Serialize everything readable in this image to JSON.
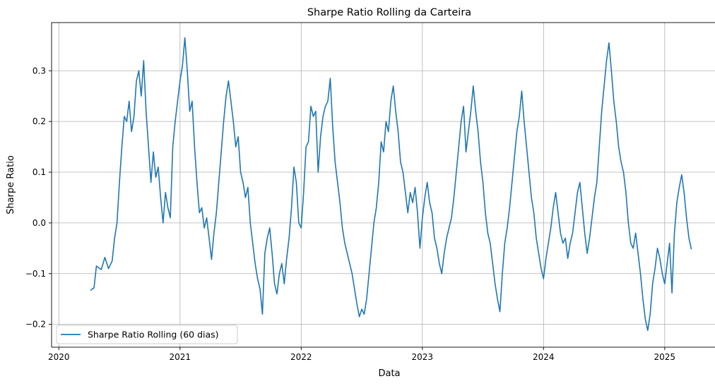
{
  "chart_data": {
    "type": "line",
    "title": "Sharpe Ratio Rolling da Carteira",
    "xlabel": "Data",
    "ylabel": "Sharpe Ratio",
    "xlim": [
      2019.94,
      2025.52
    ],
    "ylim": [
      -0.245,
      0.395
    ],
    "x_ticks": [
      {
        "value": 2020,
        "label": "2020"
      },
      {
        "value": 2021,
        "label": "2021"
      },
      {
        "value": 2022,
        "label": "2022"
      },
      {
        "value": 2023,
        "label": "2023"
      },
      {
        "value": 2024,
        "label": "2024"
      },
      {
        "value": 2025,
        "label": "2025"
      }
    ],
    "y_ticks": [
      {
        "value": -0.2,
        "label": "−0.2"
      },
      {
        "value": -0.1,
        "label": "−0.1"
      },
      {
        "value": 0.0,
        "label": "0.0"
      },
      {
        "value": 0.1,
        "label": "0.1"
      },
      {
        "value": 0.2,
        "label": "0.2"
      },
      {
        "value": 0.3,
        "label": "0.3"
      }
    ],
    "grid": true,
    "legend": {
      "position": "lower-left"
    },
    "series": [
      {
        "name": "Sharpe Ratio Rolling (60 dias)",
        "color": "#1f77b4",
        "points": [
          [
            2020.26,
            -0.133
          ],
          [
            2020.29,
            -0.128
          ],
          [
            2020.31,
            -0.085
          ],
          [
            2020.35,
            -0.092
          ],
          [
            2020.38,
            -0.068
          ],
          [
            2020.41,
            -0.09
          ],
          [
            2020.44,
            -0.075
          ],
          [
            2020.46,
            -0.03
          ],
          [
            2020.48,
            0.0
          ],
          [
            2020.5,
            0.08
          ],
          [
            2020.52,
            0.15
          ],
          [
            2020.54,
            0.21
          ],
          [
            2020.56,
            0.2
          ],
          [
            2020.58,
            0.24
          ],
          [
            2020.6,
            0.18
          ],
          [
            2020.62,
            0.21
          ],
          [
            2020.64,
            0.28
          ],
          [
            2020.66,
            0.3
          ],
          [
            2020.68,
            0.25
          ],
          [
            2020.7,
            0.32
          ],
          [
            2020.72,
            0.22
          ],
          [
            2020.74,
            0.15
          ],
          [
            2020.76,
            0.08
          ],
          [
            2020.78,
            0.14
          ],
          [
            2020.8,
            0.09
          ],
          [
            2020.82,
            0.11
          ],
          [
            2020.84,
            0.05
          ],
          [
            2020.86,
            0.0
          ],
          [
            2020.88,
            0.06
          ],
          [
            2020.9,
            0.03
          ],
          [
            2020.92,
            0.01
          ],
          [
            2020.94,
            0.15
          ],
          [
            2020.96,
            0.2
          ],
          [
            2020.98,
            0.24
          ],
          [
            2021.0,
            0.28
          ],
          [
            2021.02,
            0.31
          ],
          [
            2021.04,
            0.365
          ],
          [
            2021.06,
            0.3
          ],
          [
            2021.08,
            0.22
          ],
          [
            2021.1,
            0.24
          ],
          [
            2021.12,
            0.15
          ],
          [
            2021.14,
            0.08
          ],
          [
            2021.16,
            0.02
          ],
          [
            2021.18,
            0.03
          ],
          [
            2021.2,
            -0.01
          ],
          [
            2021.22,
            0.01
          ],
          [
            2021.24,
            -0.03
          ],
          [
            2021.26,
            -0.072
          ],
          [
            2021.28,
            -0.02
          ],
          [
            2021.3,
            0.02
          ],
          [
            2021.32,
            0.08
          ],
          [
            2021.34,
            0.14
          ],
          [
            2021.36,
            0.2
          ],
          [
            2021.38,
            0.25
          ],
          [
            2021.4,
            0.28
          ],
          [
            2021.42,
            0.24
          ],
          [
            2021.44,
            0.2
          ],
          [
            2021.46,
            0.15
          ],
          [
            2021.48,
            0.17
          ],
          [
            2021.5,
            0.1
          ],
          [
            2021.52,
            0.08
          ],
          [
            2021.54,
            0.05
          ],
          [
            2021.56,
            0.07
          ],
          [
            2021.58,
            0.0
          ],
          [
            2021.6,
            -0.04
          ],
          [
            2021.62,
            -0.08
          ],
          [
            2021.64,
            -0.11
          ],
          [
            2021.66,
            -0.13
          ],
          [
            2021.68,
            -0.18
          ],
          [
            2021.7,
            -0.06
          ],
          [
            2021.72,
            -0.03
          ],
          [
            2021.74,
            -0.01
          ],
          [
            2021.76,
            -0.06
          ],
          [
            2021.78,
            -0.12
          ],
          [
            2021.8,
            -0.14
          ],
          [
            2021.82,
            -0.1
          ],
          [
            2021.84,
            -0.08
          ],
          [
            2021.86,
            -0.12
          ],
          [
            2021.88,
            -0.07
          ],
          [
            2021.9,
            -0.03
          ],
          [
            2021.92,
            0.03
          ],
          [
            2021.94,
            0.11
          ],
          [
            2021.96,
            0.08
          ],
          [
            2021.98,
            0.0
          ],
          [
            2022.0,
            -0.01
          ],
          [
            2022.02,
            0.06
          ],
          [
            2022.04,
            0.15
          ],
          [
            2022.06,
            0.16
          ],
          [
            2022.08,
            0.23
          ],
          [
            2022.1,
            0.21
          ],
          [
            2022.12,
            0.22
          ],
          [
            2022.14,
            0.1
          ],
          [
            2022.16,
            0.17
          ],
          [
            2022.18,
            0.21
          ],
          [
            2022.2,
            0.23
          ],
          [
            2022.22,
            0.24
          ],
          [
            2022.24,
            0.285
          ],
          [
            2022.26,
            0.19
          ],
          [
            2022.28,
            0.12
          ],
          [
            2022.3,
            0.08
          ],
          [
            2022.32,
            0.04
          ],
          [
            2022.34,
            -0.01
          ],
          [
            2022.36,
            -0.04
          ],
          [
            2022.38,
            -0.06
          ],
          [
            2022.4,
            -0.08
          ],
          [
            2022.42,
            -0.1
          ],
          [
            2022.44,
            -0.13
          ],
          [
            2022.46,
            -0.16
          ],
          [
            2022.48,
            -0.185
          ],
          [
            2022.5,
            -0.17
          ],
          [
            2022.52,
            -0.18
          ],
          [
            2022.54,
            -0.15
          ],
          [
            2022.56,
            -0.1
          ],
          [
            2022.58,
            -0.05
          ],
          [
            2022.6,
            0.0
          ],
          [
            2022.62,
            0.03
          ],
          [
            2022.64,
            0.08
          ],
          [
            2022.66,
            0.16
          ],
          [
            2022.68,
            0.14
          ],
          [
            2022.7,
            0.2
          ],
          [
            2022.72,
            0.18
          ],
          [
            2022.74,
            0.24
          ],
          [
            2022.76,
            0.27
          ],
          [
            2022.78,
            0.22
          ],
          [
            2022.8,
            0.18
          ],
          [
            2022.82,
            0.12
          ],
          [
            2022.84,
            0.1
          ],
          [
            2022.86,
            0.06
          ],
          [
            2022.88,
            0.02
          ],
          [
            2022.9,
            0.06
          ],
          [
            2022.92,
            0.04
          ],
          [
            2022.94,
            0.07
          ],
          [
            2022.96,
            0.02
          ],
          [
            2022.98,
            -0.05
          ],
          [
            2023.0,
            0.01
          ],
          [
            2023.02,
            0.05
          ],
          [
            2023.04,
            0.08
          ],
          [
            2023.06,
            0.04
          ],
          [
            2023.08,
            0.02
          ],
          [
            2023.1,
            -0.03
          ],
          [
            2023.12,
            -0.05
          ],
          [
            2023.14,
            -0.08
          ],
          [
            2023.16,
            -0.1
          ],
          [
            2023.18,
            -0.06
          ],
          [
            2023.2,
            -0.03
          ],
          [
            2023.22,
            -0.01
          ],
          [
            2023.24,
            0.01
          ],
          [
            2023.26,
            0.05
          ],
          [
            2023.28,
            0.1
          ],
          [
            2023.3,
            0.15
          ],
          [
            2023.32,
            0.2
          ],
          [
            2023.34,
            0.23
          ],
          [
            2023.36,
            0.14
          ],
          [
            2023.38,
            0.18
          ],
          [
            2023.4,
            0.22
          ],
          [
            2023.42,
            0.27
          ],
          [
            2023.44,
            0.22
          ],
          [
            2023.46,
            0.18
          ],
          [
            2023.48,
            0.12
          ],
          [
            2023.5,
            0.08
          ],
          [
            2023.52,
            0.02
          ],
          [
            2023.54,
            -0.02
          ],
          [
            2023.56,
            -0.04
          ],
          [
            2023.58,
            -0.08
          ],
          [
            2023.6,
            -0.12
          ],
          [
            2023.62,
            -0.15
          ],
          [
            2023.64,
            -0.175
          ],
          [
            2023.66,
            -0.1
          ],
          [
            2023.68,
            -0.04
          ],
          [
            2023.7,
            -0.01
          ],
          [
            2023.72,
            0.03
          ],
          [
            2023.74,
            0.08
          ],
          [
            2023.76,
            0.13
          ],
          [
            2023.78,
            0.18
          ],
          [
            2023.8,
            0.21
          ],
          [
            2023.82,
            0.26
          ],
          [
            2023.84,
            0.2
          ],
          [
            2023.86,
            0.15
          ],
          [
            2023.88,
            0.1
          ],
          [
            2023.9,
            0.05
          ],
          [
            2023.92,
            0.02
          ],
          [
            2023.94,
            -0.03
          ],
          [
            2023.96,
            -0.06
          ],
          [
            2023.98,
            -0.09
          ],
          [
            2024.0,
            -0.11
          ],
          [
            2024.02,
            -0.07
          ],
          [
            2024.04,
            -0.04
          ],
          [
            2024.06,
            -0.01
          ],
          [
            2024.08,
            0.03
          ],
          [
            2024.1,
            0.06
          ],
          [
            2024.12,
            0.02
          ],
          [
            2024.14,
            -0.02
          ],
          [
            2024.16,
            -0.04
          ],
          [
            2024.18,
            -0.03
          ],
          [
            2024.2,
            -0.07
          ],
          [
            2024.22,
            -0.04
          ],
          [
            2024.24,
            -0.02
          ],
          [
            2024.26,
            0.02
          ],
          [
            2024.28,
            0.06
          ],
          [
            2024.3,
            0.08
          ],
          [
            2024.32,
            0.03
          ],
          [
            2024.34,
            -0.02
          ],
          [
            2024.36,
            -0.06
          ],
          [
            2024.38,
            -0.03
          ],
          [
            2024.4,
            0.01
          ],
          [
            2024.42,
            0.05
          ],
          [
            2024.44,
            0.08
          ],
          [
            2024.46,
            0.15
          ],
          [
            2024.48,
            0.22
          ],
          [
            2024.5,
            0.27
          ],
          [
            2024.52,
            0.32
          ],
          [
            2024.54,
            0.355
          ],
          [
            2024.56,
            0.3
          ],
          [
            2024.58,
            0.24
          ],
          [
            2024.6,
            0.2
          ],
          [
            2024.62,
            0.15
          ],
          [
            2024.64,
            0.12
          ],
          [
            2024.66,
            0.1
          ],
          [
            2024.68,
            0.06
          ],
          [
            2024.7,
            0.0
          ],
          [
            2024.72,
            -0.04
          ],
          [
            2024.74,
            -0.05
          ],
          [
            2024.76,
            -0.02
          ],
          [
            2024.78,
            -0.06
          ],
          [
            2024.8,
            -0.1
          ],
          [
            2024.82,
            -0.15
          ],
          [
            2024.84,
            -0.19
          ],
          [
            2024.86,
            -0.212
          ],
          [
            2024.88,
            -0.18
          ],
          [
            2024.9,
            -0.12
          ],
          [
            2024.92,
            -0.09
          ],
          [
            2024.94,
            -0.05
          ],
          [
            2024.96,
            -0.07
          ],
          [
            2024.98,
            -0.1
          ],
          [
            2025.0,
            -0.12
          ],
          [
            2025.02,
            -0.08
          ],
          [
            2025.04,
            -0.04
          ],
          [
            2025.06,
            -0.138
          ],
          [
            2025.08,
            -0.02
          ],
          [
            2025.1,
            0.04
          ],
          [
            2025.12,
            0.07
          ],
          [
            2025.14,
            0.095
          ],
          [
            2025.16,
            0.06
          ],
          [
            2025.18,
            0.01
          ],
          [
            2025.2,
            -0.03
          ],
          [
            2025.22,
            -0.052
          ]
        ]
      }
    ]
  }
}
